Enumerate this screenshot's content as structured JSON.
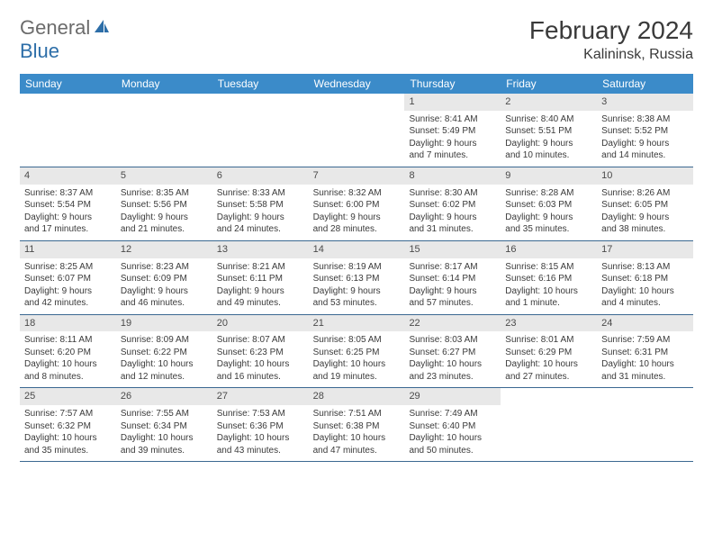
{
  "brand": {
    "general": "General",
    "blue": "Blue"
  },
  "title": "February 2024",
  "location": "Kalininsk, Russia",
  "colors": {
    "header_bg": "#3b8bc9",
    "header_text": "#ffffff",
    "row_border": "#3b6891",
    "daynum_bg": "#e8e8e8",
    "text": "#3a3a3a",
    "logo_gray": "#6b6b6b",
    "logo_blue": "#2d6ea8"
  },
  "day_names": [
    "Sunday",
    "Monday",
    "Tuesday",
    "Wednesday",
    "Thursday",
    "Friday",
    "Saturday"
  ],
  "weeks": [
    [
      {
        "n": "",
        "empty": true
      },
      {
        "n": "",
        "empty": true
      },
      {
        "n": "",
        "empty": true
      },
      {
        "n": "",
        "empty": true
      },
      {
        "n": "1",
        "sunrise": "8:41 AM",
        "sunset": "5:49 PM",
        "daylight1": "Daylight: 9 hours",
        "daylight2": "and 7 minutes."
      },
      {
        "n": "2",
        "sunrise": "8:40 AM",
        "sunset": "5:51 PM",
        "daylight1": "Daylight: 9 hours",
        "daylight2": "and 10 minutes."
      },
      {
        "n": "3",
        "sunrise": "8:38 AM",
        "sunset": "5:52 PM",
        "daylight1": "Daylight: 9 hours",
        "daylight2": "and 14 minutes."
      }
    ],
    [
      {
        "n": "4",
        "sunrise": "8:37 AM",
        "sunset": "5:54 PM",
        "daylight1": "Daylight: 9 hours",
        "daylight2": "and 17 minutes."
      },
      {
        "n": "5",
        "sunrise": "8:35 AM",
        "sunset": "5:56 PM",
        "daylight1": "Daylight: 9 hours",
        "daylight2": "and 21 minutes."
      },
      {
        "n": "6",
        "sunrise": "8:33 AM",
        "sunset": "5:58 PM",
        "daylight1": "Daylight: 9 hours",
        "daylight2": "and 24 minutes."
      },
      {
        "n": "7",
        "sunrise": "8:32 AM",
        "sunset": "6:00 PM",
        "daylight1": "Daylight: 9 hours",
        "daylight2": "and 28 minutes."
      },
      {
        "n": "8",
        "sunrise": "8:30 AM",
        "sunset": "6:02 PM",
        "daylight1": "Daylight: 9 hours",
        "daylight2": "and 31 minutes."
      },
      {
        "n": "9",
        "sunrise": "8:28 AM",
        "sunset": "6:03 PM",
        "daylight1": "Daylight: 9 hours",
        "daylight2": "and 35 minutes."
      },
      {
        "n": "10",
        "sunrise": "8:26 AM",
        "sunset": "6:05 PM",
        "daylight1": "Daylight: 9 hours",
        "daylight2": "and 38 minutes."
      }
    ],
    [
      {
        "n": "11",
        "sunrise": "8:25 AM",
        "sunset": "6:07 PM",
        "daylight1": "Daylight: 9 hours",
        "daylight2": "and 42 minutes."
      },
      {
        "n": "12",
        "sunrise": "8:23 AM",
        "sunset": "6:09 PM",
        "daylight1": "Daylight: 9 hours",
        "daylight2": "and 46 minutes."
      },
      {
        "n": "13",
        "sunrise": "8:21 AM",
        "sunset": "6:11 PM",
        "daylight1": "Daylight: 9 hours",
        "daylight2": "and 49 minutes."
      },
      {
        "n": "14",
        "sunrise": "8:19 AM",
        "sunset": "6:13 PM",
        "daylight1": "Daylight: 9 hours",
        "daylight2": "and 53 minutes."
      },
      {
        "n": "15",
        "sunrise": "8:17 AM",
        "sunset": "6:14 PM",
        "daylight1": "Daylight: 9 hours",
        "daylight2": "and 57 minutes."
      },
      {
        "n": "16",
        "sunrise": "8:15 AM",
        "sunset": "6:16 PM",
        "daylight1": "Daylight: 10 hours",
        "daylight2": "and 1 minute."
      },
      {
        "n": "17",
        "sunrise": "8:13 AM",
        "sunset": "6:18 PM",
        "daylight1": "Daylight: 10 hours",
        "daylight2": "and 4 minutes."
      }
    ],
    [
      {
        "n": "18",
        "sunrise": "8:11 AM",
        "sunset": "6:20 PM",
        "daylight1": "Daylight: 10 hours",
        "daylight2": "and 8 minutes."
      },
      {
        "n": "19",
        "sunrise": "8:09 AM",
        "sunset": "6:22 PM",
        "daylight1": "Daylight: 10 hours",
        "daylight2": "and 12 minutes."
      },
      {
        "n": "20",
        "sunrise": "8:07 AM",
        "sunset": "6:23 PM",
        "daylight1": "Daylight: 10 hours",
        "daylight2": "and 16 minutes."
      },
      {
        "n": "21",
        "sunrise": "8:05 AM",
        "sunset": "6:25 PM",
        "daylight1": "Daylight: 10 hours",
        "daylight2": "and 19 minutes."
      },
      {
        "n": "22",
        "sunrise": "8:03 AM",
        "sunset": "6:27 PM",
        "daylight1": "Daylight: 10 hours",
        "daylight2": "and 23 minutes."
      },
      {
        "n": "23",
        "sunrise": "8:01 AM",
        "sunset": "6:29 PM",
        "daylight1": "Daylight: 10 hours",
        "daylight2": "and 27 minutes."
      },
      {
        "n": "24",
        "sunrise": "7:59 AM",
        "sunset": "6:31 PM",
        "daylight1": "Daylight: 10 hours",
        "daylight2": "and 31 minutes."
      }
    ],
    [
      {
        "n": "25",
        "sunrise": "7:57 AM",
        "sunset": "6:32 PM",
        "daylight1": "Daylight: 10 hours",
        "daylight2": "and 35 minutes."
      },
      {
        "n": "26",
        "sunrise": "7:55 AM",
        "sunset": "6:34 PM",
        "daylight1": "Daylight: 10 hours",
        "daylight2": "and 39 minutes."
      },
      {
        "n": "27",
        "sunrise": "7:53 AM",
        "sunset": "6:36 PM",
        "daylight1": "Daylight: 10 hours",
        "daylight2": "and 43 minutes."
      },
      {
        "n": "28",
        "sunrise": "7:51 AM",
        "sunset": "6:38 PM",
        "daylight1": "Daylight: 10 hours",
        "daylight2": "and 47 minutes."
      },
      {
        "n": "29",
        "sunrise": "7:49 AM",
        "sunset": "6:40 PM",
        "daylight1": "Daylight: 10 hours",
        "daylight2": "and 50 minutes."
      },
      {
        "n": "",
        "empty": true
      },
      {
        "n": "",
        "empty": true
      }
    ]
  ],
  "labels": {
    "sunrise_prefix": "Sunrise: ",
    "sunset_prefix": "Sunset: "
  }
}
